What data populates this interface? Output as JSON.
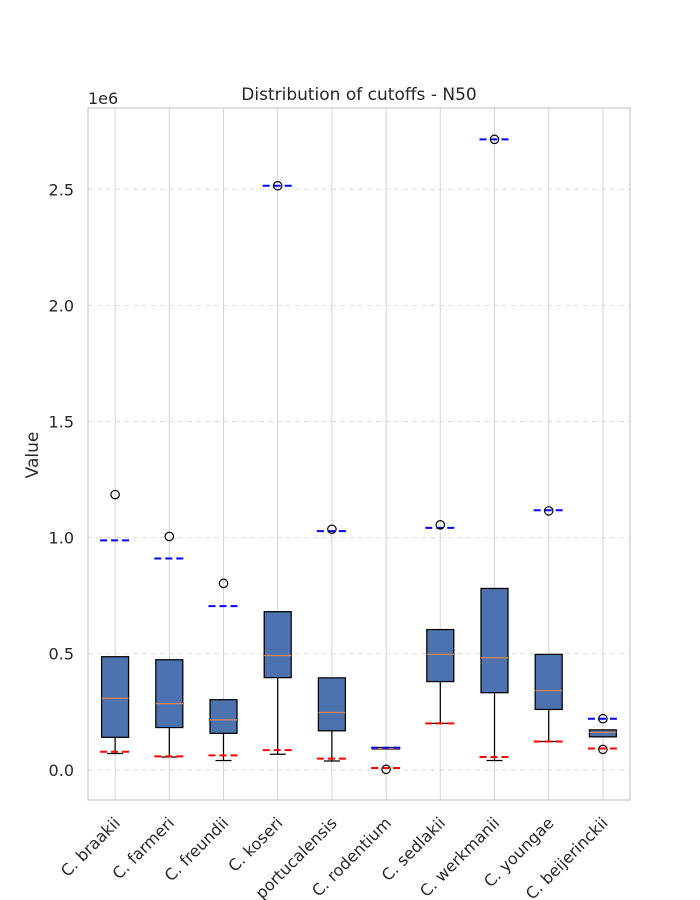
{
  "chart_data": {
    "type": "box",
    "title": "Distribution of cutoffs - N50",
    "ylabel": "Value",
    "xlabel": "",
    "y_scale_label": "1e6",
    "ylim": [
      -130000,
      2850000
    ],
    "yticks": [
      0.0,
      0.5,
      1.0,
      1.5,
      2.0,
      2.5
    ],
    "ytick_multiplier": 1000000,
    "grid": "on",
    "box_color": "#4c72b0",
    "median_color": "#dd8452",
    "upper_cutoff_color": "#0000ff",
    "lower_cutoff_color": "#ff0000",
    "categories": [
      "C. braakii",
      "C. farmeri",
      "C. freundii",
      "C. koseri",
      "C. portucalensis",
      "C. rodentium",
      "C. sedlakii",
      "C. werkmanii",
      "C. youngae",
      "C. beijerinckii"
    ],
    "boxes": [
      {
        "whislo": 70000,
        "q1": 140000,
        "med": 308000,
        "q3": 487000,
        "whishi": 487000,
        "fliers": [
          1185000
        ],
        "upper_cutoff": 988000,
        "lower_cutoff": 78000
      },
      {
        "whislo": 55000,
        "q1": 182000,
        "med": 285000,
        "q3": 474000,
        "whishi": 474000,
        "fliers": [
          1005000
        ],
        "upper_cutoff": 910000,
        "lower_cutoff": 58000
      },
      {
        "whislo": 40000,
        "q1": 157000,
        "med": 215000,
        "q3": 302000,
        "whishi": 302000,
        "fliers": [
          803000
        ],
        "upper_cutoff": 705000,
        "lower_cutoff": 62000
      },
      {
        "whislo": 67000,
        "q1": 397000,
        "med": 492000,
        "q3": 681000,
        "whishi": 681000,
        "fliers": [
          2515000
        ],
        "upper_cutoff": 2515000,
        "lower_cutoff": 85000
      },
      {
        "whislo": 38000,
        "q1": 168000,
        "med": 247000,
        "q3": 396000,
        "whishi": 396000,
        "fliers": [
          1036000
        ],
        "upper_cutoff": 1028000,
        "lower_cutoff": 48000
      },
      {
        "whislo": 90000,
        "q1": 90000,
        "med": 92000,
        "q3": 96000,
        "whishi": 96000,
        "fliers": [
          2000
        ],
        "upper_cutoff": 95000,
        "lower_cutoff": 8000
      },
      {
        "whislo": 200000,
        "q1": 380000,
        "med": 497000,
        "q3": 604000,
        "whishi": 604000,
        "fliers": [
          1055000
        ],
        "upper_cutoff": 1042000,
        "lower_cutoff": 200000
      },
      {
        "whislo": 40000,
        "q1": 332000,
        "med": 482000,
        "q3": 781000,
        "whishi": 781000,
        "fliers": [
          2715000
        ],
        "upper_cutoff": 2715000,
        "lower_cutoff": 55000
      },
      {
        "whislo": 122000,
        "q1": 260000,
        "med": 341000,
        "q3": 497000,
        "whishi": 497000,
        "fliers": [
          1115000
        ],
        "upper_cutoff": 1118000,
        "lower_cutoff": 122000
      },
      {
        "whislo": 142000,
        "q1": 142000,
        "med": 162000,
        "q3": 172000,
        "whishi": 172000,
        "fliers": [
          88000,
          220000
        ],
        "upper_cutoff": 220000,
        "lower_cutoff": 92000
      }
    ]
  }
}
